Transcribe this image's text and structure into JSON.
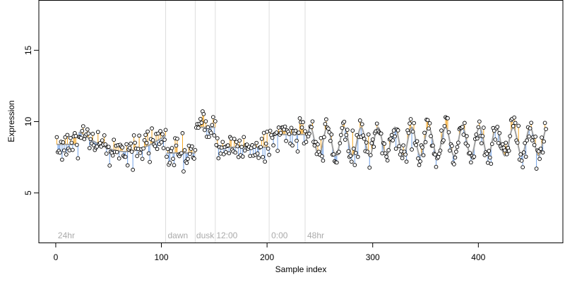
{
  "chart_data": {
    "type": "scatter",
    "xlabel": "Sample index",
    "ylabel": "Expression",
    "xlim": [
      -16,
      480
    ],
    "ylim": [
      1.5,
      18.5
    ],
    "x_ticks": [
      0,
      100,
      200,
      300,
      400
    ],
    "y_ticks": [
      5,
      10,
      15
    ],
    "grid": false,
    "region_boundaries": [
      104,
      132,
      151,
      202,
      236
    ],
    "region_labels": [
      {
        "label": "24hr",
        "x": 2
      },
      {
        "label": "dawn",
        "x": 106
      },
      {
        "label": "dusk",
        "x": 133
      },
      {
        "label": "12:00",
        "x": 152
      },
      {
        "label": "0:00",
        "x": 204
      },
      {
        "label": "48hr",
        "x": 238
      }
    ],
    "fitted_segments": [
      {
        "type": "flat",
        "start": 1,
        "end": 21,
        "level": 8.4
      },
      {
        "type": "wave",
        "start": 22,
        "end": 104,
        "base": 9.1,
        "amp": 1.2,
        "period": 160,
        "phase": 3.0
      },
      {
        "type": "flat",
        "start": 105,
        "end": 132,
        "level": 7.8
      },
      {
        "type": "flat",
        "start": 133,
        "end": 151,
        "level": 9.6
      },
      {
        "type": "flat",
        "start": 152,
        "end": 202,
        "level": 8.2
      },
      {
        "type": "flat",
        "start": 203,
        "end": 236,
        "level": 9.1
      },
      {
        "type": "wave",
        "start": 237,
        "end": 464,
        "base": 8.6,
        "amp": 1.0,
        "period": 16,
        "phase": 0
      }
    ],
    "point_noise": 0.55,
    "point_color": "#ffffff",
    "point_edge_color": "#000000",
    "residual_above_color": "#f5a623",
    "residual_below_color": "#6fa0e8",
    "fit_line_color": "#a0a0a0",
    "boundary_color": "#dddddd"
  }
}
